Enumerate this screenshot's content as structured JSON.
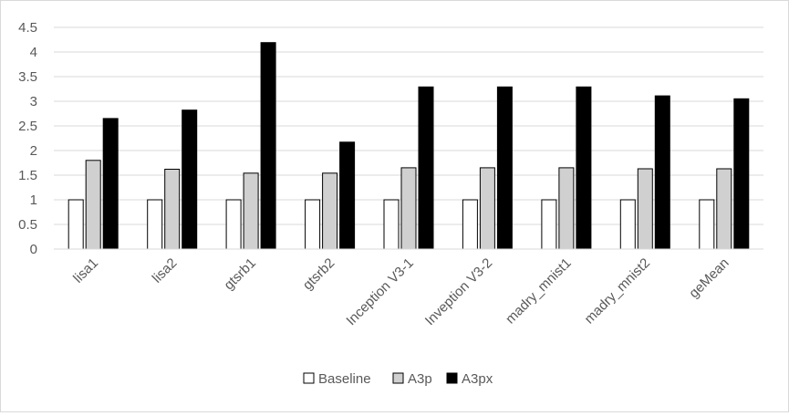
{
  "chart_data": {
    "type": "bar",
    "title": "",
    "xlabel": "",
    "ylabel": "",
    "ylim": [
      0,
      4.5
    ],
    "yticks": [
      0,
      0.5,
      1,
      1.5,
      2,
      2.5,
      3,
      3.5,
      4,
      4.5
    ],
    "ytick_labels": [
      "0",
      "0.5",
      "1",
      "1.5",
      "2",
      "2.5",
      "3",
      "3.5",
      "4",
      "4.5"
    ],
    "grid": true,
    "legend_position": "bottom",
    "categories": [
      "lisa1",
      "lisa2",
      "gtsrb1",
      "gtsrb2",
      "Inception V3-1",
      "Inveption V3-2",
      "madry_mnist1",
      "madry_mnist2",
      "geMean"
    ],
    "series": [
      {
        "name": "Baseline",
        "color": "#ffffff",
        "values": [
          1,
          1,
          1,
          1,
          1,
          1,
          1,
          1,
          1
        ]
      },
      {
        "name": "A3p",
        "color": "#d0d0d0",
        "values": [
          1.8,
          1.62,
          1.54,
          1.54,
          1.65,
          1.65,
          1.65,
          1.63,
          1.63
        ]
      },
      {
        "name": "A3px",
        "color": "#000000",
        "values": [
          2.65,
          2.82,
          4.19,
          2.17,
          3.29,
          3.29,
          3.29,
          3.11,
          3.05
        ]
      }
    ]
  }
}
